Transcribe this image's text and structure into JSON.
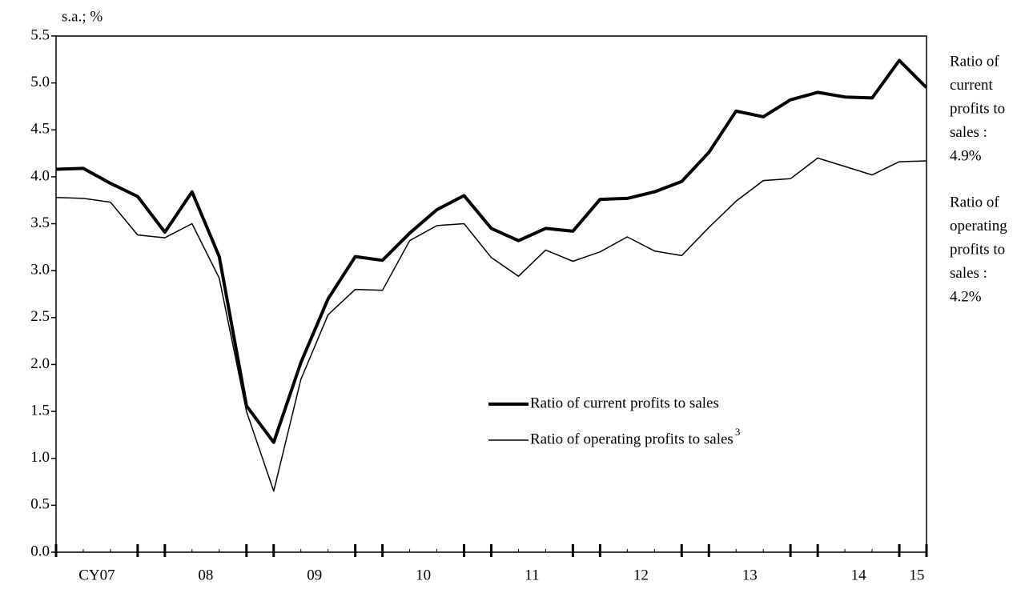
{
  "chart_data": {
    "type": "line",
    "y_label": "s.a.; %",
    "categories": [
      null,
      "CY07",
      null,
      null,
      null,
      "08",
      null,
      null,
      null,
      "09",
      null,
      null,
      null,
      "10",
      null,
      null,
      null,
      "11",
      null,
      null,
      null,
      "12",
      null,
      null,
      null,
      "13",
      null,
      null,
      null,
      "14",
      null,
      null,
      "15"
    ],
    "series": [
      {
        "name": "Ratio of current profits to sales",
        "color": "#000000",
        "width": 4,
        "values": [
          4.08,
          4.09,
          3.93,
          3.79,
          3.41,
          3.84,
          3.15,
          1.56,
          1.17,
          2.02,
          2.7,
          3.15,
          3.11,
          3.4,
          3.65,
          3.8,
          3.45,
          3.32,
          3.45,
          3.42,
          3.76,
          3.77,
          3.84,
          3.95,
          4.26,
          4.7,
          4.64,
          4.82,
          4.9,
          4.85,
          4.84,
          5.24,
          4.95
        ]
      },
      {
        "name": "Ratio of operating profits to sales",
        "footnote": "3",
        "color": "#000000",
        "width": 1.5,
        "values": [
          3.78,
          3.77,
          3.73,
          3.38,
          3.35,
          3.5,
          2.92,
          1.5,
          0.65,
          1.84,
          2.53,
          2.8,
          2.79,
          3.32,
          3.48,
          3.5,
          3.14,
          2.94,
          3.22,
          3.1,
          3.2,
          3.36,
          3.21,
          3.16,
          3.46,
          3.74,
          3.96,
          3.98,
          4.2,
          4.11,
          4.02,
          4.16,
          4.17
        ]
      }
    ],
    "ylim": [
      0,
      5.5
    ],
    "yticks": [
      {
        "value": 0,
        "label": "0.0"
      },
      0.5,
      {
        "value": 1,
        "label": "1.0"
      },
      1.5,
      {
        "value": 2,
        "label": "2.0"
      },
      2.5,
      {
        "value": 3,
        "label": "3.0"
      },
      3.5,
      {
        "value": 4,
        "label": "4.0"
      },
      4.5,
      {
        "value": 5,
        "label": "5.0"
      },
      5.5
    ],
    "annotations": [
      {
        "lines": [
          "Ratio of",
          "current",
          "profits to",
          "sales :",
          "4.9%"
        ]
      },
      {
        "lines": [
          "Ratio of",
          "operating",
          "profits to",
          "sales :",
          "4.2%"
        ]
      }
    ]
  }
}
